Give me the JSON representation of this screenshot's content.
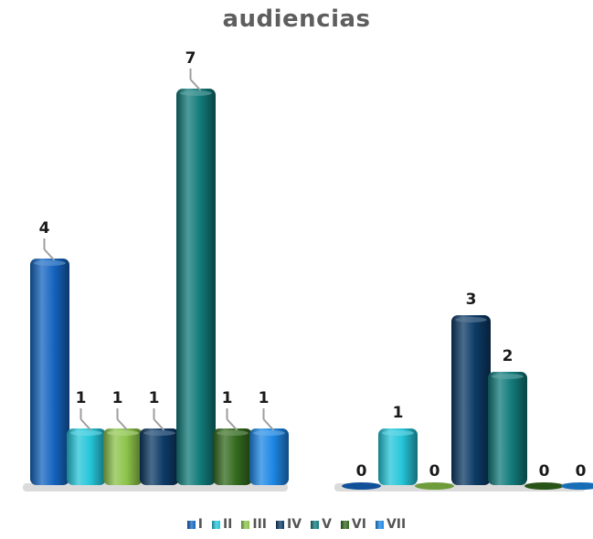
{
  "chart_data": {
    "type": "bar",
    "title": "audiencias",
    "legend_position": "bottom",
    "grid": false,
    "groups": [
      {
        "values": [
          4,
          1,
          1,
          1,
          7,
          1,
          1
        ]
      },
      {
        "values": [
          0,
          1,
          0,
          3,
          2,
          0,
          0
        ]
      }
    ],
    "series": [
      {
        "name": "I",
        "color": "#1565c0"
      },
      {
        "name": "II",
        "color": "#26c6da"
      },
      {
        "name": "III",
        "color": "#8bc34a"
      },
      {
        "name": "IV",
        "color": "#0d3b66"
      },
      {
        "name": "V",
        "color": "#137b7b"
      },
      {
        "name": "VI",
        "color": "#33691e"
      },
      {
        "name": "VII",
        "color": "#1e88e5"
      }
    ]
  }
}
